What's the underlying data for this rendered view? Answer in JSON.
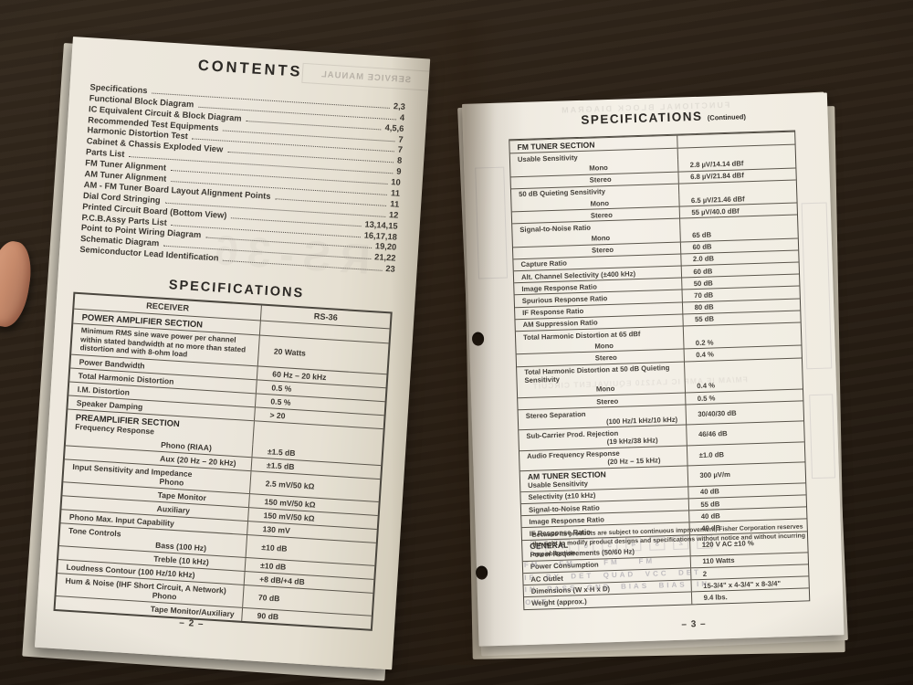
{
  "photo": {
    "surface_color": "#271d14",
    "paper_left": "#ebe6db",
    "paper_right": "#f4f0e7",
    "ink": "#34312c"
  },
  "left_page": {
    "page_number": "– 2 –",
    "contents": {
      "title": "CONTENTS",
      "items": [
        {
          "label": "Specifications",
          "page": "2,3"
        },
        {
          "label": "Functional Block Diagram",
          "page": "4"
        },
        {
          "label": "IC Equivalent Circuit & Block Diagram",
          "page": "4,5,6"
        },
        {
          "label": "Recommended Test Equipments",
          "page": "7"
        },
        {
          "label": "Harmonic Distortion Test",
          "page": "7"
        },
        {
          "label": "Cabinet & Chassis Exploded View",
          "page": "8"
        },
        {
          "label": "Parts List",
          "page": "9"
        },
        {
          "label": "FM Tuner Alignment",
          "page": "10"
        },
        {
          "label": "AM Tuner Alignment",
          "page": "11"
        },
        {
          "label": "AM - FM Tuner Board Layout Alignment Points",
          "page": "11"
        },
        {
          "label": "Dial Cord Stringing",
          "page": "12"
        },
        {
          "label": "Printed Circuit Board (Bottom View)",
          "page": "13,14,15"
        },
        {
          "label": "P.C.B.Assy Parts List",
          "page": "16,17,18"
        },
        {
          "label": "Point to Point Wiring Diagram",
          "page": "19,20"
        },
        {
          "label": "Schematic Diagram",
          "page": "21,22"
        },
        {
          "label": "Semiconductor Lead Identification",
          "page": "23"
        }
      ]
    },
    "specifications": {
      "title": "SPECIFICATIONS",
      "table": {
        "header_left": "RECEIVER",
        "header_right": "RS-36",
        "rows": [
          {
            "t": "sec",
            "l": "POWER AMPLIFIER SECTION"
          },
          {
            "t": "desc",
            "l": "Minimum RMS sine wave power per channel within stated bandwidth at no more than stated distortion and with 8-ohm load",
            "v": "20 Watts"
          },
          {
            "t": "row",
            "l": "Power Bandwidth",
            "v": "60 Hz – 20 kHz"
          },
          {
            "t": "row",
            "l": "Total Harmonic Distortion",
            "v": "0.5 %"
          },
          {
            "t": "row",
            "l": "I.M. Distortion",
            "v": "0.5 %"
          },
          {
            "t": "row",
            "l": "Speaker Damping",
            "v": "> 20"
          },
          {
            "t": "sec2",
            "l": "PREAMPLIFIER SECTION",
            "l2": "Frequency Response"
          },
          {
            "t": "ind0",
            "l": "Phono (RIAA)",
            "v": "±1.5 dB"
          },
          {
            "t": "ind",
            "l": "Aux (20 Hz – 20 kHz)",
            "v": "±1.5 dB"
          },
          {
            "t": "grp",
            "l": "Input Sensitivity and Impedance",
            "l2": "Phono",
            "v": "2.5 mV/50 kΩ"
          },
          {
            "t": "ind",
            "l": "Tape Monitor",
            "v": "150 mV/50 kΩ"
          },
          {
            "t": "ind",
            "l": "Auxiliary",
            "v": "150 mV/50 kΩ"
          },
          {
            "t": "row",
            "l": "Phono Max. Input Capability",
            "v": "130 mV"
          },
          {
            "t": "grp",
            "l": "Tone Controls",
            "l2": "Bass (100 Hz)",
            "v": "±10 dB"
          },
          {
            "t": "ind",
            "l": "Treble (10 kHz)",
            "v": "±10 dB"
          },
          {
            "t": "row",
            "l": "Loudness Contour (100 Hz/10 kHz)",
            "v": "+8 dB/+4 dB"
          },
          {
            "t": "grp",
            "l": "Hum & Noise (IHF Short Circuit, A Network)",
            "l2": "Phono",
            "v": "70 dB"
          },
          {
            "t": "ind",
            "l": "Tape Monitor/Auxiliary",
            "v": "90 dB"
          }
        ]
      }
    },
    "ghosts": {
      "cover_box": "SERVICE MANUAL",
      "model": "RS-36"
    }
  },
  "right_page": {
    "page_number": "– 3 –",
    "title": "SPECIFICATIONS",
    "title_suffix": "(Continued)",
    "table": {
      "rows": [
        {
          "t": "sec",
          "l": "FM TUNER SECTION"
        },
        {
          "t": "lab",
          "l": "Usable Sensitivity"
        },
        {
          "t": "ind0",
          "l": "Mono",
          "v": "2.8 µV/14.14 dBf"
        },
        {
          "t": "ind",
          "l": "Stereo",
          "v": "6.8 µV/21.84 dBf"
        },
        {
          "t": "lab",
          "l": "50 dB Quieting Sensitivity"
        },
        {
          "t": "ind0",
          "l": "Mono",
          "v": "6.5 µV/21.46 dBf"
        },
        {
          "t": "ind",
          "l": "Stereo",
          "v": "55 µV/40.0 dBf"
        },
        {
          "t": "lab",
          "l": "Signal-to-Noise Ratio"
        },
        {
          "t": "ind0",
          "l": "Mono",
          "v": "65 dB"
        },
        {
          "t": "ind",
          "l": "Stereo",
          "v": "60 dB"
        },
        {
          "t": "row",
          "l": "Capture Ratio",
          "v": "2.0 dB"
        },
        {
          "t": "row",
          "l": "Alt. Channel Selectivity (±400 kHz)",
          "v": "60 dB"
        },
        {
          "t": "row",
          "l": "Image Response Ratio",
          "v": "50 dB"
        },
        {
          "t": "row",
          "l": "Spurious Response Ratio",
          "v": "70 dB"
        },
        {
          "t": "row",
          "l": "IF Response Ratio",
          "v": "80 dB"
        },
        {
          "t": "row",
          "l": "AM Suppression Ratio",
          "v": "55 dB"
        },
        {
          "t": "lab",
          "l": "Total Harmonic Distortion at 65 dBf"
        },
        {
          "t": "ind0",
          "l": "Mono",
          "v": "0.2 %"
        },
        {
          "t": "ind",
          "l": "Stereo",
          "v": "0.4 %"
        },
        {
          "t": "lab",
          "l": "Total Harmonic Distortion at 50 dB Quieting Sensitivity"
        },
        {
          "t": "ind0",
          "l": "Mono",
          "v": "0.4 %"
        },
        {
          "t": "ind",
          "l": "Stereo",
          "v": "0.5 %"
        },
        {
          "t": "two",
          "l": "Stereo Separation",
          "l2": "(100 Hz/1 kHz/10 kHz)",
          "v": "30/40/30 dB"
        },
        {
          "t": "two",
          "l": "Sub-Carrier Prod. Rejection",
          "l2": "(19 kHz/38 kHz)",
          "v": "46/46 dB"
        },
        {
          "t": "two",
          "l": "Audio Frequency Response",
          "l2": "(20 Hz – 15 kHz)",
          "v": "±1.0 dB"
        },
        {
          "t": "secrow",
          "l": "AM TUNER SECTION",
          "l2": "Usable Sensitivity",
          "v": "300 µV/m"
        },
        {
          "t": "row",
          "l": "Selectivity (±10 kHz)",
          "v": "40 dB"
        },
        {
          "t": "row",
          "l": "Signal-to-Noise Ratio",
          "v": "55 dB"
        },
        {
          "t": "row",
          "l": "Image Response Ratio",
          "v": "40 dB"
        },
        {
          "t": "row",
          "l": "IF Response Ratio",
          "v": "40 dB"
        },
        {
          "t": "secrow",
          "l": "GENERAL",
          "l2": "Power Requirements (50/60 Hz)",
          "v": "120 V AC ±10 %"
        },
        {
          "t": "row",
          "l": "Power Consumption",
          "v": "110 Watts"
        },
        {
          "t": "row",
          "l": "AC Outlet",
          "v": "2"
        },
        {
          "t": "row",
          "l": "Dimensions (W x H x D)",
          "v": "15-3/4\" x 4-3/4\" x 8-3/4\""
        },
        {
          "t": "row",
          "l": "Weight (approx.)",
          "v": "9.4 lbs."
        }
      ]
    },
    "footnote": "Because its products are subject to continuous improvement, Fisher Corporation reserves the right to modify product designs and specifications without notice and without incurring any obligation.",
    "ghosts": {
      "header": "FUNCTIONAL BLOCK DIAGRAM",
      "mid": "FM/AM IF AMP IC LA1210 EQUIVALENT CIRCUIT",
      "pin_numbers": "12345678",
      "pin_rows": [
        "FM    FM      FM    FM",
        "IF  BY  DET  QUAD  VCC  DET",
        "IN  PASS  GND  BIAS  BIAS  IN",
        "OUT"
      ]
    }
  }
}
